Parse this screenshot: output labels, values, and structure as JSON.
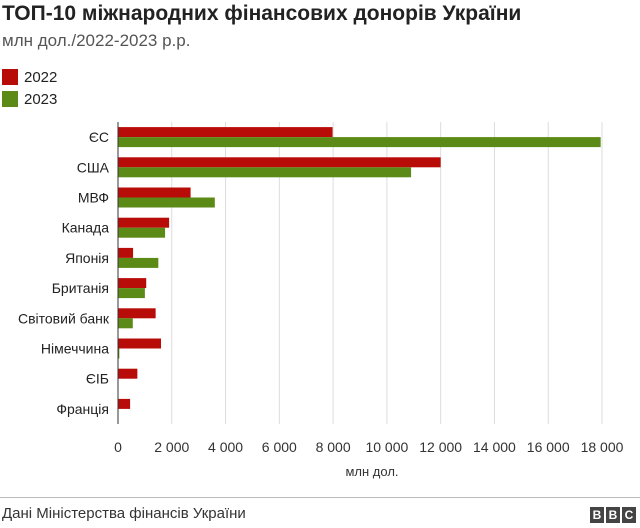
{
  "title": "ТОП-10 міжнародних фінансових донорів України",
  "subtitle": "млн дол./2022-2023 р.р.",
  "source": "Дані Міністерства фінансів України",
  "logo": [
    "B",
    "B",
    "C"
  ],
  "colors": {
    "series_2022": "#b80c09",
    "series_2023": "#5c8a16",
    "grid": "#dddddd",
    "axis": "#333333"
  },
  "chart_data": {
    "type": "bar",
    "orientation": "horizontal",
    "title": "ТОП-10 міжнародних фінансових донорів України",
    "subtitle": "млн дол./2022-2023 р.р.",
    "xlabel": "млн дол.",
    "ylabel": "",
    "xlim": [
      0,
      18000
    ],
    "xticks": [
      0,
      2000,
      4000,
      6000,
      8000,
      10000,
      12000,
      14000,
      16000,
      18000
    ],
    "xtick_labels": [
      "0",
      "2 000",
      "4 000",
      "6 000",
      "8 000",
      "10 000",
      "12 000",
      "14 000",
      "16 000",
      "18 000"
    ],
    "grid": true,
    "legend": "top-left",
    "categories": [
      "ЄС",
      "США",
      "МВФ",
      "Канада",
      "Японія",
      "Британія",
      "Світовий банк",
      "Німеччина",
      "ЄІБ",
      "Франція"
    ],
    "series": [
      {
        "name": "2022",
        "color": "#b80c09",
        "values": [
          7980,
          12000,
          2700,
          1900,
          560,
          1050,
          1400,
          1600,
          720,
          450
        ]
      },
      {
        "name": "2023",
        "color": "#5c8a16",
        "values": [
          17950,
          10900,
          3600,
          1750,
          1500,
          1000,
          550,
          50,
          0,
          0
        ]
      }
    ]
  }
}
